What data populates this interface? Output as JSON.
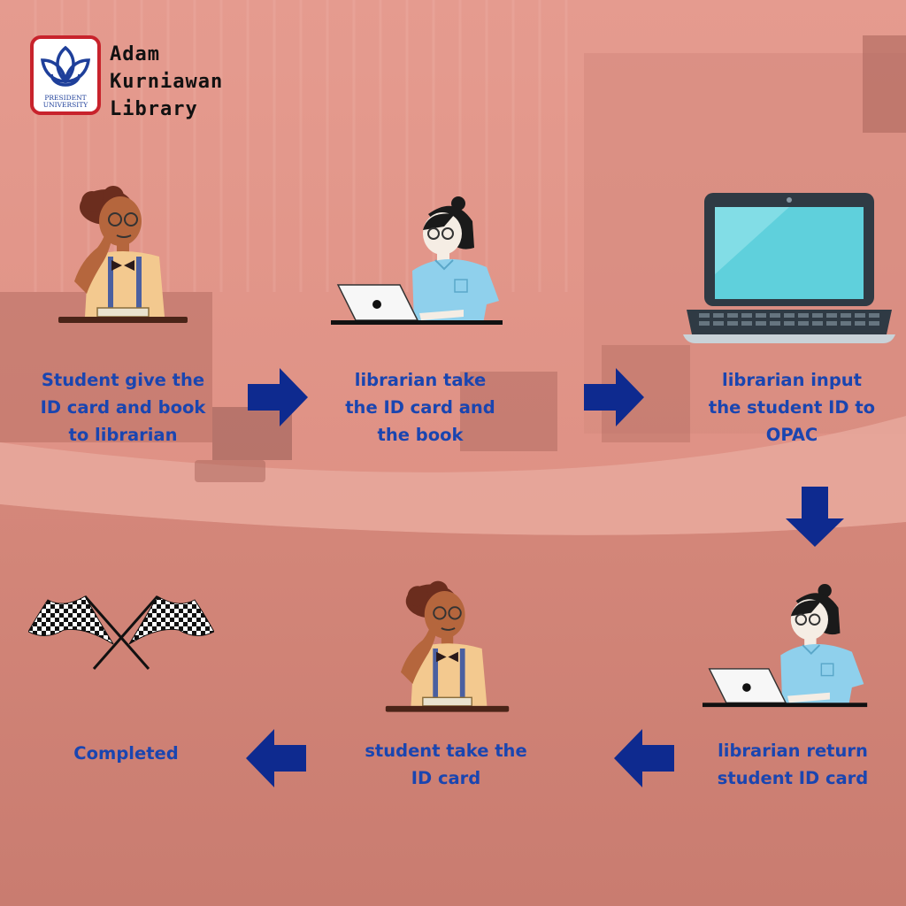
{
  "brand": {
    "line1": "Adam",
    "line2": "Kurniawan",
    "line3": "Library",
    "logo_text_1": "PRESIDENT",
    "logo_text_2": "UNIVERSITY"
  },
  "steps": [
    {
      "line1": "Student give the",
      "line2": "ID card and book",
      "line3": "to librarian"
    },
    {
      "line1": "librarian take",
      "line2": "the ID card and",
      "line3": "the book"
    },
    {
      "line1": "librarian input",
      "line2": "the student ID to",
      "line3": "OPAC"
    },
    {
      "line1": "librarian return",
      "line2": "student ID card"
    },
    {
      "line1": "student take the",
      "line2": "ID card"
    },
    {
      "line1": "Completed"
    }
  ],
  "icons": [
    "student-illustration",
    "librarian-illustration",
    "laptop-illustration",
    "checkered-flags-icon",
    "arrow-right-icon",
    "arrow-down-icon",
    "arrow-left-icon"
  ],
  "colors": {
    "label": "#1a45b0",
    "arrow": "#0e2a8f",
    "background": "#cf8478"
  }
}
